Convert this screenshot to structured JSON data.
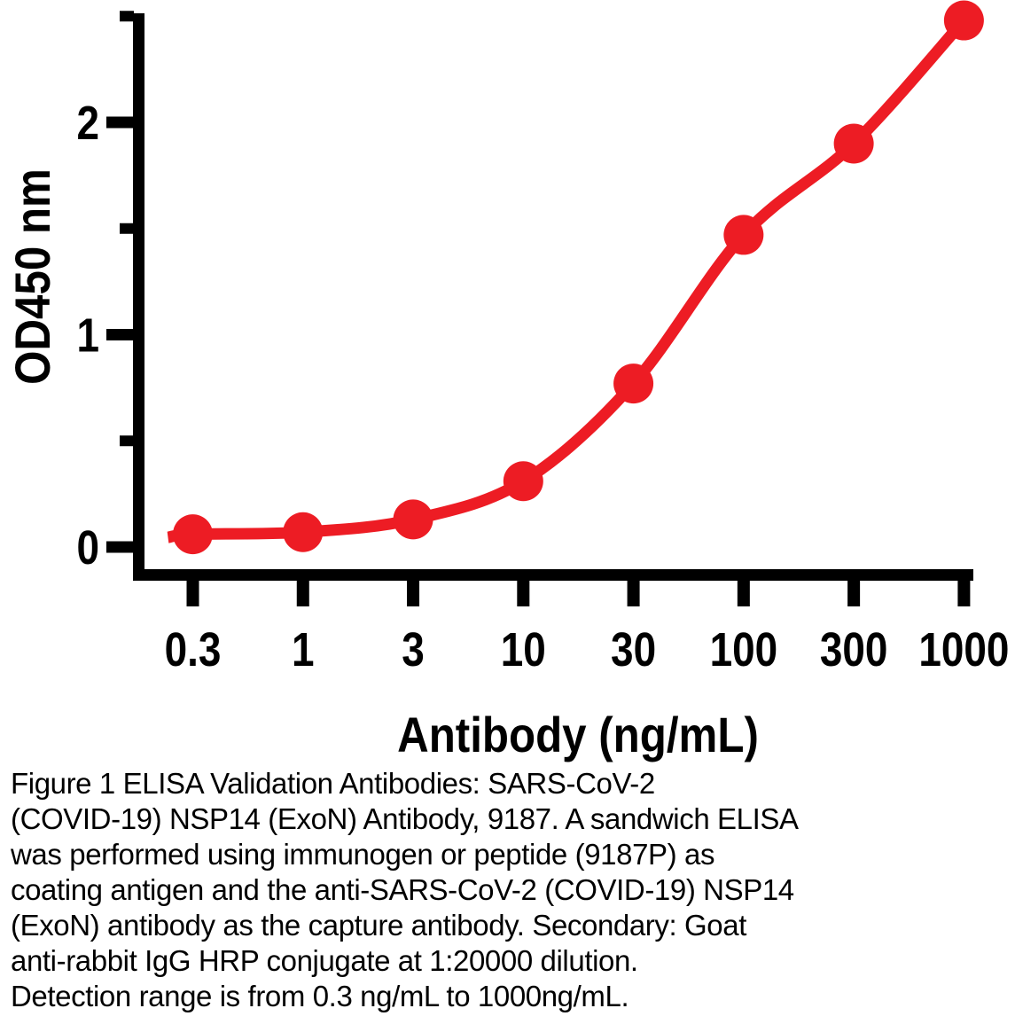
{
  "chart_data": {
    "type": "line",
    "x": [
      0.3,
      1,
      3,
      10,
      30,
      100,
      300,
      1000
    ],
    "y": [
      0.06,
      0.07,
      0.13,
      0.31,
      0.77,
      1.47,
      1.9,
      2.48
    ],
    "xlabel": "Antibody (ng/mL)",
    "ylabel": "OD450 nm",
    "xscale": "log",
    "x_tick_labels": [
      "0.3",
      "1",
      "3",
      "10",
      "30",
      "100",
      "300",
      "1000"
    ],
    "y_major_ticks": [
      0,
      1,
      2
    ],
    "y_tick_labels": [
      "0",
      "1",
      "2"
    ],
    "y_minor_ticks": [
      0.5,
      1.5,
      2.5
    ],
    "ylim": [
      0,
      2.5
    ],
    "grid": false,
    "legend": "none",
    "marker": "circle",
    "line_color": "#ED1C24",
    "marker_color": "#ED1C24",
    "axis_color": "#000000"
  },
  "caption": {
    "text": "Figure 1 ELISA Validation Antibodies: SARS-CoV-2\n(COVID-19) NSP14 (ExoN) Antibody, 9187. A sandwich ELISA\nwas performed using immunogen or peptide (9187P) as\ncoating antigen and the anti-SARS-CoV-2 (COVID-19) NSP14\n(ExoN) antibody as the capture antibody. Secondary: Goat\nanti-rabbit IgG HRP conjugate at 1:20000 dilution.\nDetection range is from 0.3 ng/mL to 1000ng/mL."
  }
}
